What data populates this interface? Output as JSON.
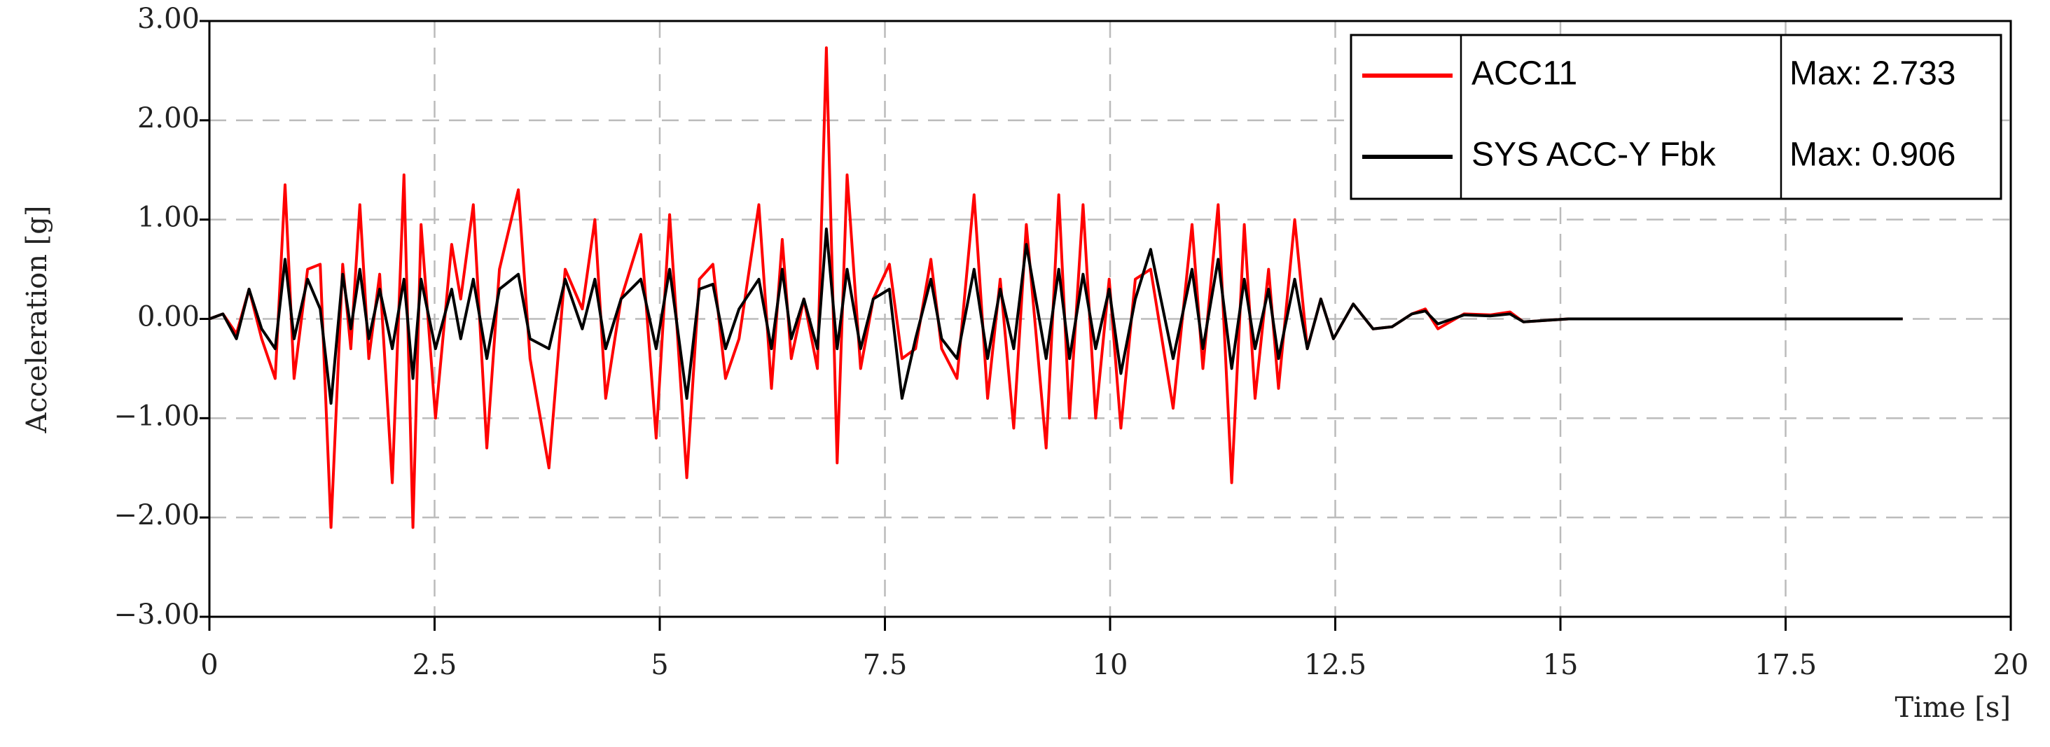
{
  "chart_data": {
    "type": "line",
    "x_label": "Time [s]",
    "y_label": "Acceleration [g]",
    "x": [
      0,
      0.15,
      0.3,
      0.44,
      0.58,
      0.73,
      0.84,
      0.94,
      1.09,
      1.23,
      1.35,
      1.48,
      1.57,
      1.67,
      1.77,
      1.89,
      2.03,
      2.16,
      2.26,
      2.35,
      2.51,
      2.69,
      2.79,
      2.93,
      3.08,
      3.22,
      3.43,
      3.56,
      3.77,
      3.95,
      4.14,
      4.28,
      4.4,
      4.57,
      4.79,
      4.96,
      5.11,
      5.3,
      5.44,
      5.59,
      5.73,
      5.88,
      6.1,
      6.24,
      6.36,
      6.46,
      6.6,
      6.75,
      6.85,
      6.97,
      7.08,
      7.23,
      7.37,
      7.55,
      7.69,
      7.84,
      8.01,
      8.13,
      8.3,
      8.49,
      8.64,
      8.78,
      8.93,
      9.07,
      9.29,
      9.43,
      9.55,
      9.7,
      9.84,
      9.99,
      10.12,
      10.28,
      10.45,
      10.7,
      10.91,
      11.03,
      11.2,
      11.35,
      11.49,
      11.61,
      11.76,
      11.87,
      12.05,
      12.19,
      12.34,
      12.48,
      12.7,
      12.92,
      13.13,
      13.35,
      13.5,
      13.64,
      13.93,
      14.22,
      14.44,
      14.59,
      15.09,
      16.5,
      18.8
    ],
    "series": [
      {
        "name": "ACC11",
        "color": "#ff0000",
        "max_label": "Max: 2.733",
        "values": [
          0,
          0.05,
          -0.15,
          0.3,
          -0.2,
          -0.6,
          1.35,
          -0.6,
          0.5,
          0.55,
          -2.1,
          0.55,
          -0.3,
          1.15,
          -0.4,
          0.45,
          -1.65,
          1.45,
          -2.1,
          0.95,
          -1.0,
          0.75,
          0.2,
          1.15,
          -1.3,
          0.5,
          1.3,
          -0.4,
          -1.5,
          0.5,
          0.1,
          1.0,
          -0.8,
          0.2,
          0.85,
          -1.2,
          1.05,
          -1.6,
          0.4,
          0.55,
          -0.6,
          -0.2,
          1.15,
          -0.7,
          0.8,
          -0.4,
          0.2,
          -0.5,
          2.73,
          -1.45,
          1.45,
          -0.5,
          0.2,
          0.55,
          -0.4,
          -0.3,
          0.6,
          -0.3,
          -0.6,
          1.25,
          -0.8,
          0.4,
          -1.1,
          0.95,
          -1.3,
          1.25,
          -1.0,
          1.15,
          -1.0,
          0.4,
          -1.1,
          0.4,
          0.5,
          -0.9,
          0.95,
          -0.5,
          1.15,
          -1.65,
          0.95,
          -0.8,
          0.5,
          -0.7,
          1.0,
          -0.3,
          0.2,
          -0.2,
          0.15,
          -0.1,
          -0.08,
          0.05,
          0.1,
          -0.1,
          0.05,
          0.04,
          0.07,
          -0.03,
          0,
          0,
          0
        ]
      },
      {
        "name": "SYS ACC-Y Fbk",
        "color": "#000000",
        "max_label": "Max: 0.906",
        "values": [
          0,
          0.05,
          -0.2,
          0.3,
          -0.1,
          -0.3,
          0.6,
          -0.2,
          0.4,
          0.1,
          -0.85,
          0.45,
          -0.1,
          0.5,
          -0.2,
          0.3,
          -0.3,
          0.4,
          -0.6,
          0.4,
          -0.3,
          0.3,
          -0.2,
          0.4,
          -0.4,
          0.3,
          0.45,
          -0.2,
          -0.3,
          0.4,
          -0.1,
          0.4,
          -0.3,
          0.2,
          0.4,
          -0.3,
          0.5,
          -0.8,
          0.3,
          0.35,
          -0.3,
          0.1,
          0.4,
          -0.3,
          0.5,
          -0.2,
          0.2,
          -0.3,
          0.906,
          -0.3,
          0.5,
          -0.3,
          0.2,
          0.3,
          -0.8,
          -0.2,
          0.4,
          -0.2,
          -0.4,
          0.5,
          -0.4,
          0.3,
          -0.3,
          0.75,
          -0.4,
          0.5,
          -0.4,
          0.45,
          -0.3,
          0.3,
          -0.55,
          0.2,
          0.7,
          -0.4,
          0.5,
          -0.3,
          0.6,
          -0.5,
          0.4,
          -0.3,
          0.3,
          -0.4,
          0.4,
          -0.3,
          0.2,
          -0.2,
          0.15,
          -0.1,
          -0.08,
          0.05,
          0.08,
          -0.05,
          0.04,
          0.03,
          0.05,
          -0.03,
          0,
          0,
          0
        ]
      }
    ],
    "xlim": [
      0,
      20
    ],
    "xticks": [
      0,
      2.5,
      5,
      7.5,
      10,
      12.5,
      15,
      17.5,
      20
    ],
    "ylim": [
      -3,
      3
    ],
    "yticks": [
      {
        "value": -3,
        "label": "−3.00"
      },
      {
        "value": -2,
        "label": "−2.00"
      },
      {
        "value": -1,
        "label": "−1.00"
      },
      {
        "value": 0,
        "label": "0.00"
      },
      {
        "value": 1,
        "label": "1.00"
      },
      {
        "value": 2,
        "label": "2.00"
      },
      {
        "value": 3,
        "label": "3.00"
      }
    ],
    "grid": true,
    "legend": "upper right"
  }
}
